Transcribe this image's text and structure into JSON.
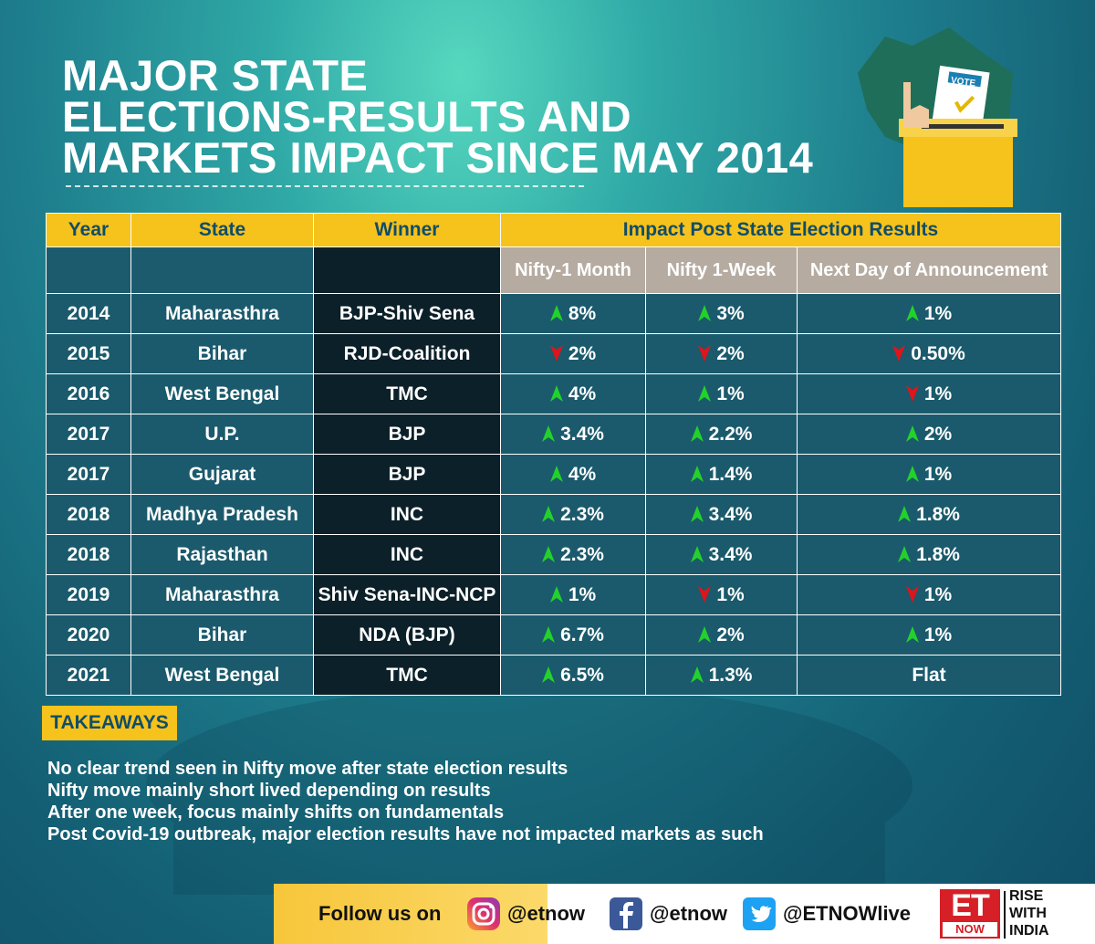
{
  "title": [
    "MAJOR STATE",
    "ELECTIONS-RESULTS AND",
    "MARKETS IMPACT SINCE MAY 2014"
  ],
  "vote_label": "VOTE",
  "table": {
    "headers": {
      "year": "Year",
      "state": "State",
      "winner": "Winner",
      "impact": "Impact Post State Election Results"
    },
    "subheaders": [
      "Nifty-1 Month",
      "Nifty 1-Week",
      "Next Day of Announcement"
    ],
    "rows": [
      {
        "year": "2014",
        "state": "Maharasthra",
        "winner": "BJP-Shiv Sena",
        "m1": "8%",
        "m1_dir": "up",
        "w1": "3%",
        "w1_dir": "up",
        "nd": "1%",
        "nd_dir": "up"
      },
      {
        "year": "2015",
        "state": "Bihar",
        "winner": "RJD-Coalition",
        "m1": "2%",
        "m1_dir": "down",
        "w1": "2%",
        "w1_dir": "down",
        "nd": "0.50%",
        "nd_dir": "down"
      },
      {
        "year": "2016",
        "state": "West Bengal",
        "winner": "TMC",
        "m1": "4%",
        "m1_dir": "up",
        "w1": "1%",
        "w1_dir": "up",
        "nd": "1%",
        "nd_dir": "down"
      },
      {
        "year": "2017",
        "state": "U.P.",
        "winner": "BJP",
        "m1": "3.4%",
        "m1_dir": "up",
        "w1": "2.2%",
        "w1_dir": "up",
        "nd": "2%",
        "nd_dir": "up"
      },
      {
        "year": "2017",
        "state": "Gujarat",
        "winner": "BJP",
        "m1": "4%",
        "m1_dir": "up",
        "w1": "1.4%",
        "w1_dir": "up",
        "nd": "1%",
        "nd_dir": "up"
      },
      {
        "year": "2018",
        "state": "Madhya Pradesh",
        "winner": "INC",
        "m1": "2.3%",
        "m1_dir": "up",
        "w1": "3.4%",
        "w1_dir": "up",
        "nd": "1.8%",
        "nd_dir": "up"
      },
      {
        "year": "2018",
        "state": "Rajasthan",
        "winner": "INC",
        "m1": "2.3%",
        "m1_dir": "up",
        "w1": "3.4%",
        "w1_dir": "up",
        "nd": "1.8%",
        "nd_dir": "up"
      },
      {
        "year": "2019",
        "state": "Maharasthra",
        "winner": "Shiv Sena-INC-NCP",
        "m1": "1%",
        "m1_dir": "up",
        "w1": "1%",
        "w1_dir": "down",
        "nd": "1%",
        "nd_dir": "down"
      },
      {
        "year": "2020",
        "state": "Bihar",
        "winner": "NDA (BJP)",
        "m1": "6.7%",
        "m1_dir": "up",
        "w1": "2%",
        "w1_dir": "up",
        "nd": "1%",
        "nd_dir": "up"
      },
      {
        "year": "2021",
        "state": "West Bengal",
        "winner": "TMC",
        "m1": "6.5%",
        "m1_dir": "up",
        "w1": "1.3%",
        "w1_dir": "up",
        "nd": "Flat",
        "nd_dir": "none"
      }
    ]
  },
  "takeaways": {
    "label": "TAKEAWAYS",
    "items": [
      "No clear trend seen in Nifty move after state election results",
      "Nifty move mainly short lived depending on results",
      "After one week, focus mainly shifts on fundamentals",
      "Post Covid-19 outbreak, major election results have not impacted markets as such"
    ]
  },
  "footer": {
    "follow": "Follow us on",
    "instagram": "@etnow",
    "facebook": "@etnow",
    "twitter": "@ETNOWlive",
    "logo_et": "ET",
    "logo_now": "NOW",
    "tagline": [
      "RISE",
      "WITH",
      "INDIA"
    ]
  },
  "colors": {
    "up": "#23d12b",
    "down": "#e0141b",
    "header": "#f6c21c",
    "text_dark": "#0f4d69"
  }
}
